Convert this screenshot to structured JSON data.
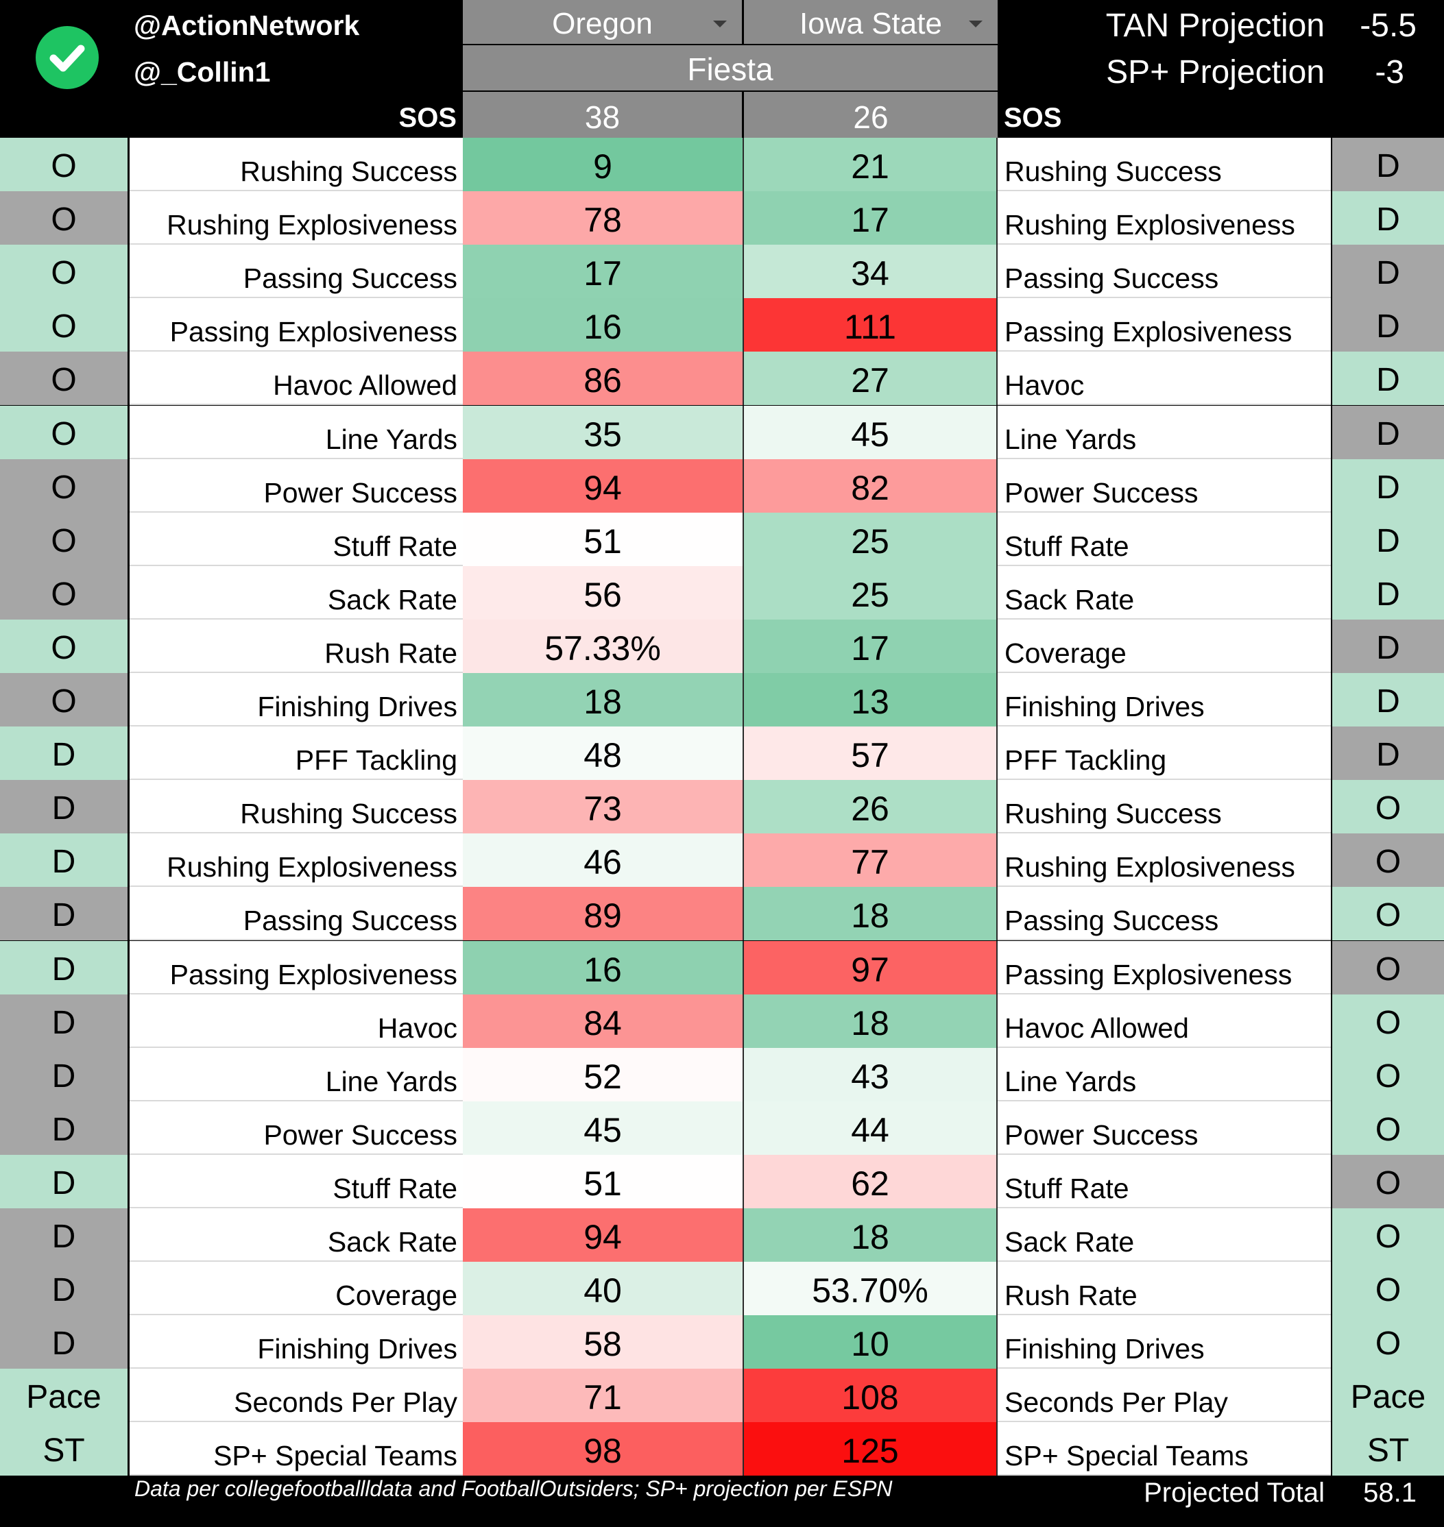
{
  "header": {
    "handle_1": "@ActionNetwork",
    "handle_2": "@_Collin1",
    "sos_label_left": "SOS",
    "sos_label_right": "SOS",
    "team_left": "Oregon",
    "team_right": "Iowa State",
    "bowl": "Fiesta",
    "sos_left": "38",
    "sos_right": "26",
    "tan_label": "TAN Projection",
    "tan_value": "-5.5",
    "sp_label": "SP+ Projection",
    "sp_value": "-3",
    "logo_icon": "check-circle-icon",
    "logo_color": "#1ec462"
  },
  "colors": {
    "side_green": "#b7e1cd",
    "side_gray": "#a6a6a6"
  },
  "rows": [
    {
      "left_side": "O",
      "left_label": "Rushing Success",
      "left_value": "9",
      "left_color": "#73c89e",
      "right_value": "21",
      "right_color": "#9cd8ba",
      "right_label": "Rushing Success",
      "right_side": "D",
      "ls": "green",
      "rs": "gray"
    },
    {
      "left_side": "O",
      "left_label": "Rushing Explosiveness",
      "left_value": "78",
      "left_color": "#fda8a8",
      "right_value": "17",
      "right_color": "#8fd2b1",
      "right_label": "Rushing Explosiveness",
      "right_side": "D",
      "ls": "gray",
      "rs": "green"
    },
    {
      "left_side": "O",
      "left_label": "Passing Success",
      "left_value": "17",
      "left_color": "#8fd2b1",
      "right_value": "34",
      "right_color": "#c5e8d6",
      "right_label": "Passing Success",
      "right_side": "D",
      "ls": "green",
      "rs": "gray"
    },
    {
      "left_side": "O",
      "left_label": "Passing Explosiveness",
      "left_value": "16",
      "left_color": "#8ed1b0",
      "right_value": "111",
      "right_color": "#fc3535",
      "right_label": "Passing Explosiveness",
      "right_side": "D",
      "ls": "green",
      "rs": "gray"
    },
    {
      "left_side": "O",
      "left_label": "Havoc Allowed",
      "left_value": "86",
      "left_color": "#fc8e8e",
      "right_value": "27",
      "right_color": "#afdfc7",
      "right_label": "Havoc",
      "right_side": "D",
      "ls": "gray",
      "rs": "green"
    },
    {
      "left_side": "O",
      "left_label": "Line Yards",
      "left_value": "35",
      "left_color": "#c9e9d9",
      "right_value": "45",
      "right_color": "#edf8f2",
      "right_label": "Line Yards",
      "right_side": "D",
      "ls": "green",
      "rs": "gray"
    },
    {
      "left_side": "O",
      "left_label": "Power Success",
      "left_value": "94",
      "left_color": "#fc6f6f",
      "right_value": "82",
      "right_color": "#fd9b9b",
      "right_label": "Power Success",
      "right_side": "D",
      "ls": "gray",
      "rs": "green"
    },
    {
      "left_side": "O",
      "left_label": "Stuff Rate",
      "left_value": "51",
      "left_color": "#fffefe",
      "right_value": "25",
      "right_color": "#abdec5",
      "right_label": "Stuff Rate",
      "right_side": "D",
      "ls": "gray",
      "rs": "green"
    },
    {
      "left_side": "O",
      "left_label": "Sack Rate",
      "left_value": "56",
      "left_color": "#feeaea",
      "right_value": "25",
      "right_color": "#abdec5",
      "right_label": "Sack Rate",
      "right_side": "D",
      "ls": "gray",
      "rs": "green"
    },
    {
      "left_side": "O",
      "left_label": "Rush Rate",
      "left_value": "57.33%",
      "left_color": "#fde6e6",
      "right_value": "17",
      "right_color": "#8fd2b1",
      "right_label": "Coverage",
      "right_side": "D",
      "ls": "green",
      "rs": "gray"
    },
    {
      "left_side": "O",
      "left_label": "Finishing Drives",
      "left_value": "18",
      "left_color": "#93d3b4",
      "right_value": "13",
      "right_color": "#80cca6",
      "right_label": "Finishing Drives",
      "right_side": "D",
      "ls": "gray",
      "rs": "green"
    },
    {
      "left_side": "D",
      "left_label": "PFF Tackling",
      "left_value": "48",
      "left_color": "#f6fbf8",
      "right_value": "57",
      "right_color": "#fee8e8",
      "right_label": "PFF Tackling",
      "right_side": "D",
      "ls": "green",
      "rs": "gray"
    },
    {
      "left_side": "D",
      "left_label": "Rushing Success",
      "left_value": "73",
      "left_color": "#fdb4b4",
      "right_value": "26",
      "right_color": "#addfc6",
      "right_label": "Rushing Success",
      "right_side": "O",
      "ls": "gray",
      "rs": "green"
    },
    {
      "left_side": "D",
      "left_label": "Rushing Explosiveness",
      "left_value": "46",
      "left_color": "#f0f9f4",
      "right_value": "77",
      "right_color": "#fdaaaa",
      "right_label": "Rushing Explosiveness",
      "right_side": "O",
      "ls": "green",
      "rs": "gray"
    },
    {
      "left_side": "D",
      "left_label": "Passing Success",
      "left_value": "89",
      "left_color": "#fc8383",
      "right_value": "18",
      "right_color": "#93d3b4",
      "right_label": "Passing Success",
      "right_side": "O",
      "ls": "gray",
      "rs": "green"
    },
    {
      "left_side": "D",
      "left_label": "Passing Explosiveness",
      "left_value": "16",
      "left_color": "#8ed1b0",
      "right_value": "97",
      "right_color": "#fc6363",
      "right_label": "Passing Explosiveness",
      "right_side": "O",
      "ls": "green",
      "rs": "gray"
    },
    {
      "left_side": "D",
      "left_label": "Havoc",
      "left_value": "84",
      "left_color": "#fc9494",
      "right_value": "18",
      "right_color": "#93d3b4",
      "right_label": "Havoc Allowed",
      "right_side": "O",
      "ls": "gray",
      "rs": "green"
    },
    {
      "left_side": "D",
      "left_label": "Line Yards",
      "left_value": "52",
      "left_color": "#fffafa",
      "right_value": "43",
      "right_color": "#e8f6ef",
      "right_label": "Line Yards",
      "right_side": "O",
      "ls": "gray",
      "rs": "green"
    },
    {
      "left_side": "D",
      "left_label": "Power Success",
      "left_value": "45",
      "left_color": "#edf8f2",
      "right_value": "44",
      "right_color": "#eaf7f0",
      "right_label": "Power Success",
      "right_side": "O",
      "ls": "gray",
      "rs": "green"
    },
    {
      "left_side": "D",
      "left_label": "Stuff Rate",
      "left_value": "51",
      "left_color": "#fffefe",
      "right_value": "62",
      "right_color": "#fed7d7",
      "right_label": "Stuff Rate",
      "right_side": "O",
      "ls": "green",
      "rs": "gray"
    },
    {
      "left_side": "D",
      "left_label": "Sack Rate",
      "left_value": "94",
      "left_color": "#fc6f6f",
      "right_value": "18",
      "right_color": "#93d3b4",
      "right_label": "Sack Rate",
      "right_side": "O",
      "ls": "gray",
      "rs": "green"
    },
    {
      "left_side": "D",
      "left_label": "Coverage",
      "left_value": "40",
      "left_color": "#dbf0e5",
      "right_value": "53.70%",
      "right_color": "#f3faf6",
      "right_label": "Rush Rate",
      "right_side": "O",
      "ls": "gray",
      "rs": "green"
    },
    {
      "left_side": "D",
      "left_label": "Finishing Drives",
      "left_value": "58",
      "left_color": "#fee3e3",
      "right_value": "10",
      "right_color": "#76c9a0",
      "right_label": "Finishing Drives",
      "right_side": "O",
      "ls": "gray",
      "rs": "green"
    },
    {
      "left_side": "Pace",
      "left_label": "Seconds Per Play",
      "left_value": "71",
      "left_color": "#fdbaba",
      "right_value": "108",
      "right_color": "#fc3c3c",
      "right_label": "Seconds Per Play",
      "right_side": "Pace",
      "ls": "green",
      "rs": "green"
    },
    {
      "left_side": "ST",
      "left_label": "SP+ Special Teams",
      "left_value": "98",
      "left_color": "#fc5f5f",
      "right_value": "125",
      "right_color": "#fb0f0f",
      "right_label": "SP+ Special Teams",
      "right_side": "ST",
      "ls": "green",
      "rs": "green"
    }
  ],
  "footer": {
    "note": "Data per collegefootballldata and FootballOutsiders; SP+ projection per ESPN",
    "total_label": "Projected Total",
    "total_value": "58.1"
  }
}
